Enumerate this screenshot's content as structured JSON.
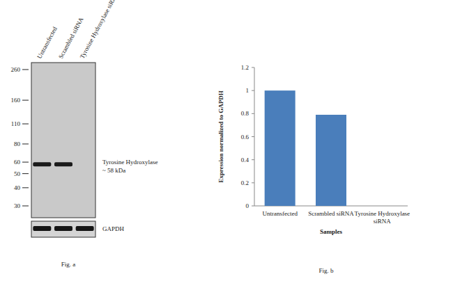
{
  "blot": {
    "lanes": [
      {
        "label": "Untransfected",
        "band": true,
        "gapdh": true
      },
      {
        "label": "Scrambled siRNA",
        "band": true,
        "gapdh": true
      },
      {
        "label": "Tyrosine Hydroxylase siRNA",
        "band": false,
        "gapdh": true
      }
    ],
    "markers": [
      260,
      160,
      110,
      80,
      60,
      50,
      40,
      30
    ],
    "band_kda": 58,
    "band_label": [
      "Tyrosine Hydroxylase",
      "~ 58 kDa"
    ],
    "loading_label": "GAPDH",
    "caption": "Fig. a"
  },
  "chart_data": {
    "type": "bar",
    "categories": [
      "Untransfected",
      "Scrambled siRNA",
      "Tyrosine Hydroxylase siRNA"
    ],
    "values": [
      1,
      0.79,
      0
    ],
    "color": "#4a7ebb",
    "ylim": [
      0,
      1.2
    ],
    "yticks": [
      0,
      0.2,
      0.4,
      0.6,
      0.8,
      1,
      1.2
    ],
    "y_label": "Expression normalized to GAPDH",
    "x_label": "Samples",
    "caption": "Fig. b",
    "grid": false
  }
}
